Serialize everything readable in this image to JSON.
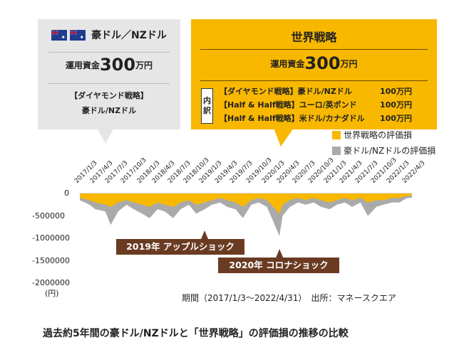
{
  "left_box": {
    "title": "豪ドル／NZドル",
    "capital_prefix": "運用資金",
    "capital_value": "300",
    "capital_unit": "万円",
    "strategy_line1": "【ダイヤモンド戦略】",
    "strategy_line2": "豪ドル/NZドル"
  },
  "right_box": {
    "title": "世界戦略",
    "capital_prefix": "運用資金",
    "capital_value": "300",
    "capital_unit": "万円",
    "breakdown_label_1": "内",
    "breakdown_label_2": "訳",
    "rows": [
      {
        "name": "【ダイヤモンド戦略】豪ドル/NZドル",
        "amount": "100万円"
      },
      {
        "name": "【Half & Half戦略】ユーロ/英ポンド",
        "amount": "100万円"
      },
      {
        "name": "【Half & Half戦略】米ドル/カナダドル",
        "amount": "100万円"
      }
    ]
  },
  "chart_data": {
    "type": "area",
    "series": [
      {
        "name": "世界戦略の評価損",
        "color": "#f8b800",
        "x": [
          "2017/1/3",
          "2017/3/1",
          "2017/4/3",
          "2017/6/1",
          "2017/7/3",
          "2017/8/15",
          "2017/10/3",
          "2017/11/15",
          "2018/1/3",
          "2018/2/15",
          "2018/4/3",
          "2018/5/15",
          "2018/7/3",
          "2018/8/15",
          "2018/10/3",
          "2018/11/15",
          "2019/1/3",
          "2019/2/15",
          "2019/4/3",
          "2019/5/15",
          "2019/7/3",
          "2019/8/15",
          "2019/10/3",
          "2019/11/15",
          "2020/1/3",
          "2020/3/16",
          "2020/4/3",
          "2020/5/15",
          "2020/7/3",
          "2020/8/15",
          "2020/10/3",
          "2020/11/15",
          "2021/1/3",
          "2021/2/15",
          "2021/4/3",
          "2021/5/15",
          "2021/7/3",
          "2021/8/15",
          "2021/10/3",
          "2021/11/15",
          "2022/1/3",
          "2022/2/15",
          "2022/4/3",
          "2022/4/29"
        ],
        "values": [
          -100000,
          -150000,
          -200000,
          -250000,
          -300000,
          -200000,
          -150000,
          -200000,
          -250000,
          -300000,
          -200000,
          -250000,
          -300000,
          -200000,
          -150000,
          -250000,
          -200000,
          -150000,
          -100000,
          -150000,
          -200000,
          -300000,
          -150000,
          -100000,
          -150000,
          -450000,
          -250000,
          -150000,
          -100000,
          -150000,
          -100000,
          -150000,
          -200000,
          -150000,
          -100000,
          -150000,
          -100000,
          -200000,
          -150000,
          -150000,
          -100000,
          -100000,
          -50000,
          -50000
        ]
      },
      {
        "name": "豪ドル/NZドルの評価損",
        "color": "#aaaaaa",
        "x": [
          "2017/1/3",
          "2017/3/1",
          "2017/4/3",
          "2017/6/1",
          "2017/7/3",
          "2017/8/15",
          "2017/10/3",
          "2017/11/15",
          "2018/1/3",
          "2018/2/15",
          "2018/4/3",
          "2018/5/15",
          "2018/7/3",
          "2018/8/15",
          "2018/10/3",
          "2018/11/15",
          "2019/1/3",
          "2019/2/15",
          "2019/4/3",
          "2019/5/15",
          "2019/7/3",
          "2019/8/15",
          "2019/10/3",
          "2019/11/15",
          "2020/1/3",
          "2020/3/16",
          "2020/4/3",
          "2020/5/15",
          "2020/7/3",
          "2020/8/15",
          "2020/10/3",
          "2020/11/15",
          "2021/1/3",
          "2021/2/15",
          "2021/4/3",
          "2021/5/15",
          "2021/7/3",
          "2021/8/15",
          "2021/10/3",
          "2021/11/15",
          "2022/1/3",
          "2022/2/15",
          "2022/4/3",
          "2022/4/29"
        ],
        "values": [
          -150000,
          -250000,
          -350000,
          -400000,
          -700000,
          -400000,
          -250000,
          -350000,
          -450000,
          -550000,
          -350000,
          -400000,
          -550000,
          -350000,
          -250000,
          -450000,
          -350000,
          -250000,
          -200000,
          -300000,
          -350000,
          -550000,
          -250000,
          -200000,
          -300000,
          -950000,
          -500000,
          -300000,
          -200000,
          -250000,
          -200000,
          -300000,
          -350000,
          -250000,
          -200000,
          -300000,
          -200000,
          -500000,
          -300000,
          -250000,
          -200000,
          -200000,
          -100000,
          -100000
        ]
      }
    ],
    "ylim": [
      -2000000,
      0
    ],
    "yticks": [
      {
        "value": 0,
        "label": "0"
      },
      {
        "value": -500000,
        "label": "-500000"
      },
      {
        "value": -1000000,
        "label": "-1000000"
      },
      {
        "value": -1500000,
        "label": "-1500000"
      },
      {
        "value": -2000000,
        "label": "-2000000"
      }
    ],
    "y_unit": "(円)",
    "xticks": [
      "2017/1/3",
      "2017/4/3",
      "2017/7/3",
      "2017/10/3",
      "2018/1/3",
      "2018/4/3",
      "2018/7/3",
      "2018/10/3",
      "2019/1/3",
      "2019/4/3",
      "2019/7/3",
      "2019/10/3",
      "2020/1/3",
      "2020/4/3",
      "2020/7/3",
      "2020/10/3",
      "2021/1/3",
      "2021/4/3",
      "2021/7/3",
      "2021/10/3",
      "2022/1/3",
      "2022/4/3"
    ],
    "xlim": [
      "2017/1/3",
      "2022/4/30"
    ],
    "annotations": [
      {
        "label": "2019年 アップルショック",
        "x": "2019/1/3"
      },
      {
        "label": "2020年 コロナショック",
        "x": "2020/3/16"
      }
    ],
    "period_note": "期間（2017/1/3〜2022/4/31）",
    "source_note": "出所：マネースクエア",
    "legend_placement": "top-right"
  },
  "caption": "過去約5年間の豪ドル/NZドルと「世界戦略」の評価損の推移の比較"
}
